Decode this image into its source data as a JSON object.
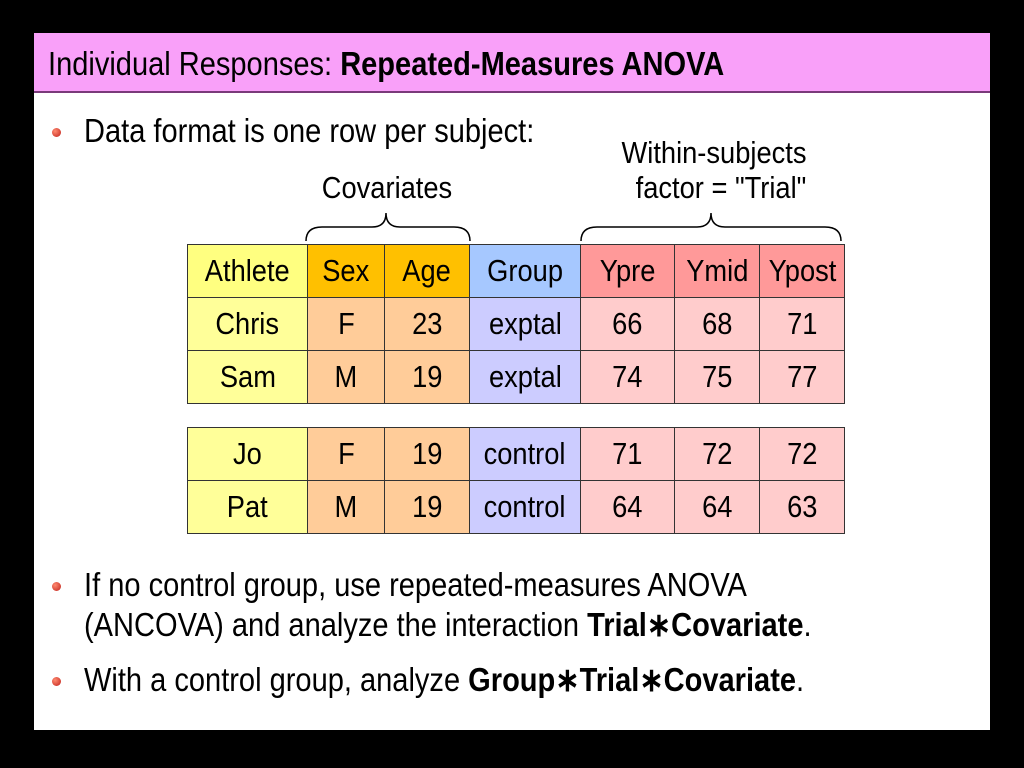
{
  "title": {
    "regular": "Individual Responses: ",
    "bold": "Repeated-Measures ANOVA"
  },
  "bullet1": "Data format is one row per subject:",
  "annotations": {
    "covariates": "Covariates",
    "within_line1": "Within-subjects",
    "within_line2": "factor = \"Trial\""
  },
  "table": {
    "headers": [
      "Athlete",
      "Sex",
      "Age",
      "Group",
      "Ypre",
      "Ymid",
      "Ypost"
    ],
    "rows": [
      [
        "Chris",
        "F",
        "23",
        "exptal",
        "66",
        "68",
        "71"
      ],
      [
        "Sam",
        "M",
        "19",
        "exptal",
        "74",
        "75",
        "77"
      ]
    ]
  },
  "table2": {
    "rows": [
      [
        "Jo",
        "F",
        "19",
        "control",
        "71",
        "72",
        "72"
      ],
      [
        "Pat",
        "M",
        "19",
        "control",
        "64",
        "64",
        "63"
      ]
    ]
  },
  "bullet2": {
    "line1": "If no control group, use repeated-measures ANOVA",
    "line2_regular": "(ANCOVA) and analyze the interaction ",
    "line2_bold": "Trial∗Covariate",
    "line2_end": "."
  },
  "bullet3": {
    "regular": "With a control group, analyze ",
    "bold": "Group∗Trial∗Covariate",
    "end": "."
  },
  "colors": {
    "title_bar": "#f9a0f9",
    "athlete_header": "#ffff80",
    "covariate_header": "#ffc000",
    "group_header": "#a6c8ff",
    "trial_header": "#ff9999",
    "athlete_cell": "#ffff99",
    "covariate_cell": "#ffcc99",
    "group_cell": "#ccccff",
    "trial_cell": "#ffcccc"
  }
}
